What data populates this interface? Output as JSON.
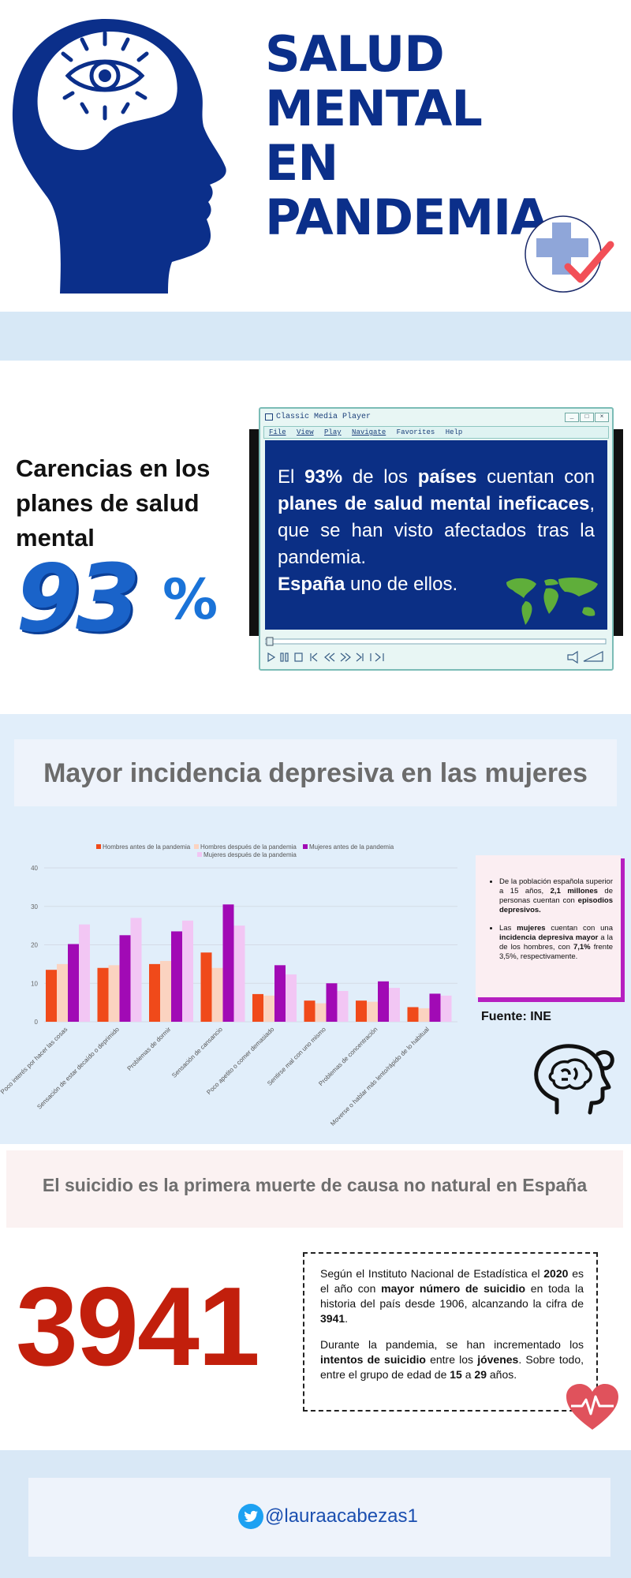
{
  "hero": {
    "title_lines": [
      "SALUD",
      "MENTAL",
      "EN",
      "PANDEMIA"
    ],
    "colors": {
      "navy": "#0b2f8a",
      "accent_blue": "#1a63c9",
      "red": "#c21f0c"
    }
  },
  "stat": {
    "heading": "Carencias en los planes de salud mental",
    "big_number": "93",
    "percent_sign": "%"
  },
  "player": {
    "window_title": "Classic Media Player",
    "menu": [
      "File",
      "View",
      "Play",
      "Navigate",
      "Favorites",
      "Help"
    ],
    "text": {
      "p1_a": "El ",
      "p1_b": "93%",
      "p1_c": " de los ",
      "p1_d": "países",
      "p1_e": " cuentan con ",
      "p1_f": "planes de salud mental ineficaces",
      "p1_g": ", que se han visto afectados tras la pandemia.",
      "p2_a": "España",
      "p2_b": " uno de ellos."
    }
  },
  "chart_section": {
    "heading": "Mayor incidencia depresiva en las mujeres",
    "source": "Fuente: INE",
    "side_card": {
      "b1_a": "De la población española superior a 15 años, ",
      "b1_b": "2,1 millones",
      "b1_c": " de personas cuentan con ",
      "b1_d": "episodios depresivos.",
      "b2_a": "Las ",
      "b2_b": "mujeres",
      "b2_c": " cuentan con una ",
      "b2_d": "incidencia depresiva mayor",
      "b2_e": " a la de los hombres, con ",
      "b2_f": "7,1%",
      "b2_g": " frente 3,5%, respectivamente."
    }
  },
  "chart_data": {
    "type": "bar",
    "categories": [
      "Poco interés por hacer las cosas",
      "Sensación de estar decaído o deprimido",
      "Problemas de dormir",
      "Sensación de cansancio",
      "Poco apetito o comer demasiado",
      "Sentirse mal con uno mismo",
      "Problemas de concentración",
      "Moverse o hablar más lento/rápido de lo habitual"
    ],
    "series": [
      {
        "name": "Hombres antes de la pandemia",
        "color": "#f04a1a",
        "values": [
          13.5,
          14,
          15,
          18,
          7.2,
          5.5,
          5.5,
          3.8
        ]
      },
      {
        "name": "Hombres después de la pandemia",
        "color": "#fbd3c0",
        "values": [
          15,
          14.7,
          15.8,
          14,
          6.8,
          4.8,
          5.2,
          3.5
        ]
      },
      {
        "name": "Mujeres antes de la pandemia",
        "color": "#a10ab5",
        "values": [
          20.2,
          22.5,
          23.5,
          30.5,
          14.7,
          10,
          10.5,
          7.3
        ]
      },
      {
        "name": "Mujeres después de la pandemia",
        "color": "#f2c6f4",
        "values": [
          25.3,
          27,
          26.3,
          25,
          12.3,
          8,
          8.8,
          6.8
        ]
      }
    ],
    "yticks": [
      "0",
      "10",
      "20",
      "30",
      "40"
    ],
    "ylim": [
      0,
      40
    ],
    "grid": true,
    "legend": "top"
  },
  "suicide": {
    "heading": "El suicidio es la primera muerte de causa no natural en España",
    "big_number": "3941",
    "p1_a": "Según el Instituto Nacional de Estadística el ",
    "p1_b": "2020",
    "p1_c": " es el año con ",
    "p1_d": "mayor número de suicidio",
    "p1_e": " en toda la historia del país desde 1906, alcanzando la cifra de ",
    "p1_f": "3941",
    "p1_g": ".",
    "p2_a": "Durante la pandemia, se han incrementado los ",
    "p2_b": "intentos de suicidio",
    "p2_c": " entre los ",
    "p2_d": "jóvenes",
    "p2_e": ". Sobre todo, entre el grupo de edad de ",
    "p2_f": "15",
    "p2_g": " a ",
    "p2_h": "29",
    "p2_i": " años."
  },
  "footer": {
    "handle": "@lauraacabezas1"
  }
}
